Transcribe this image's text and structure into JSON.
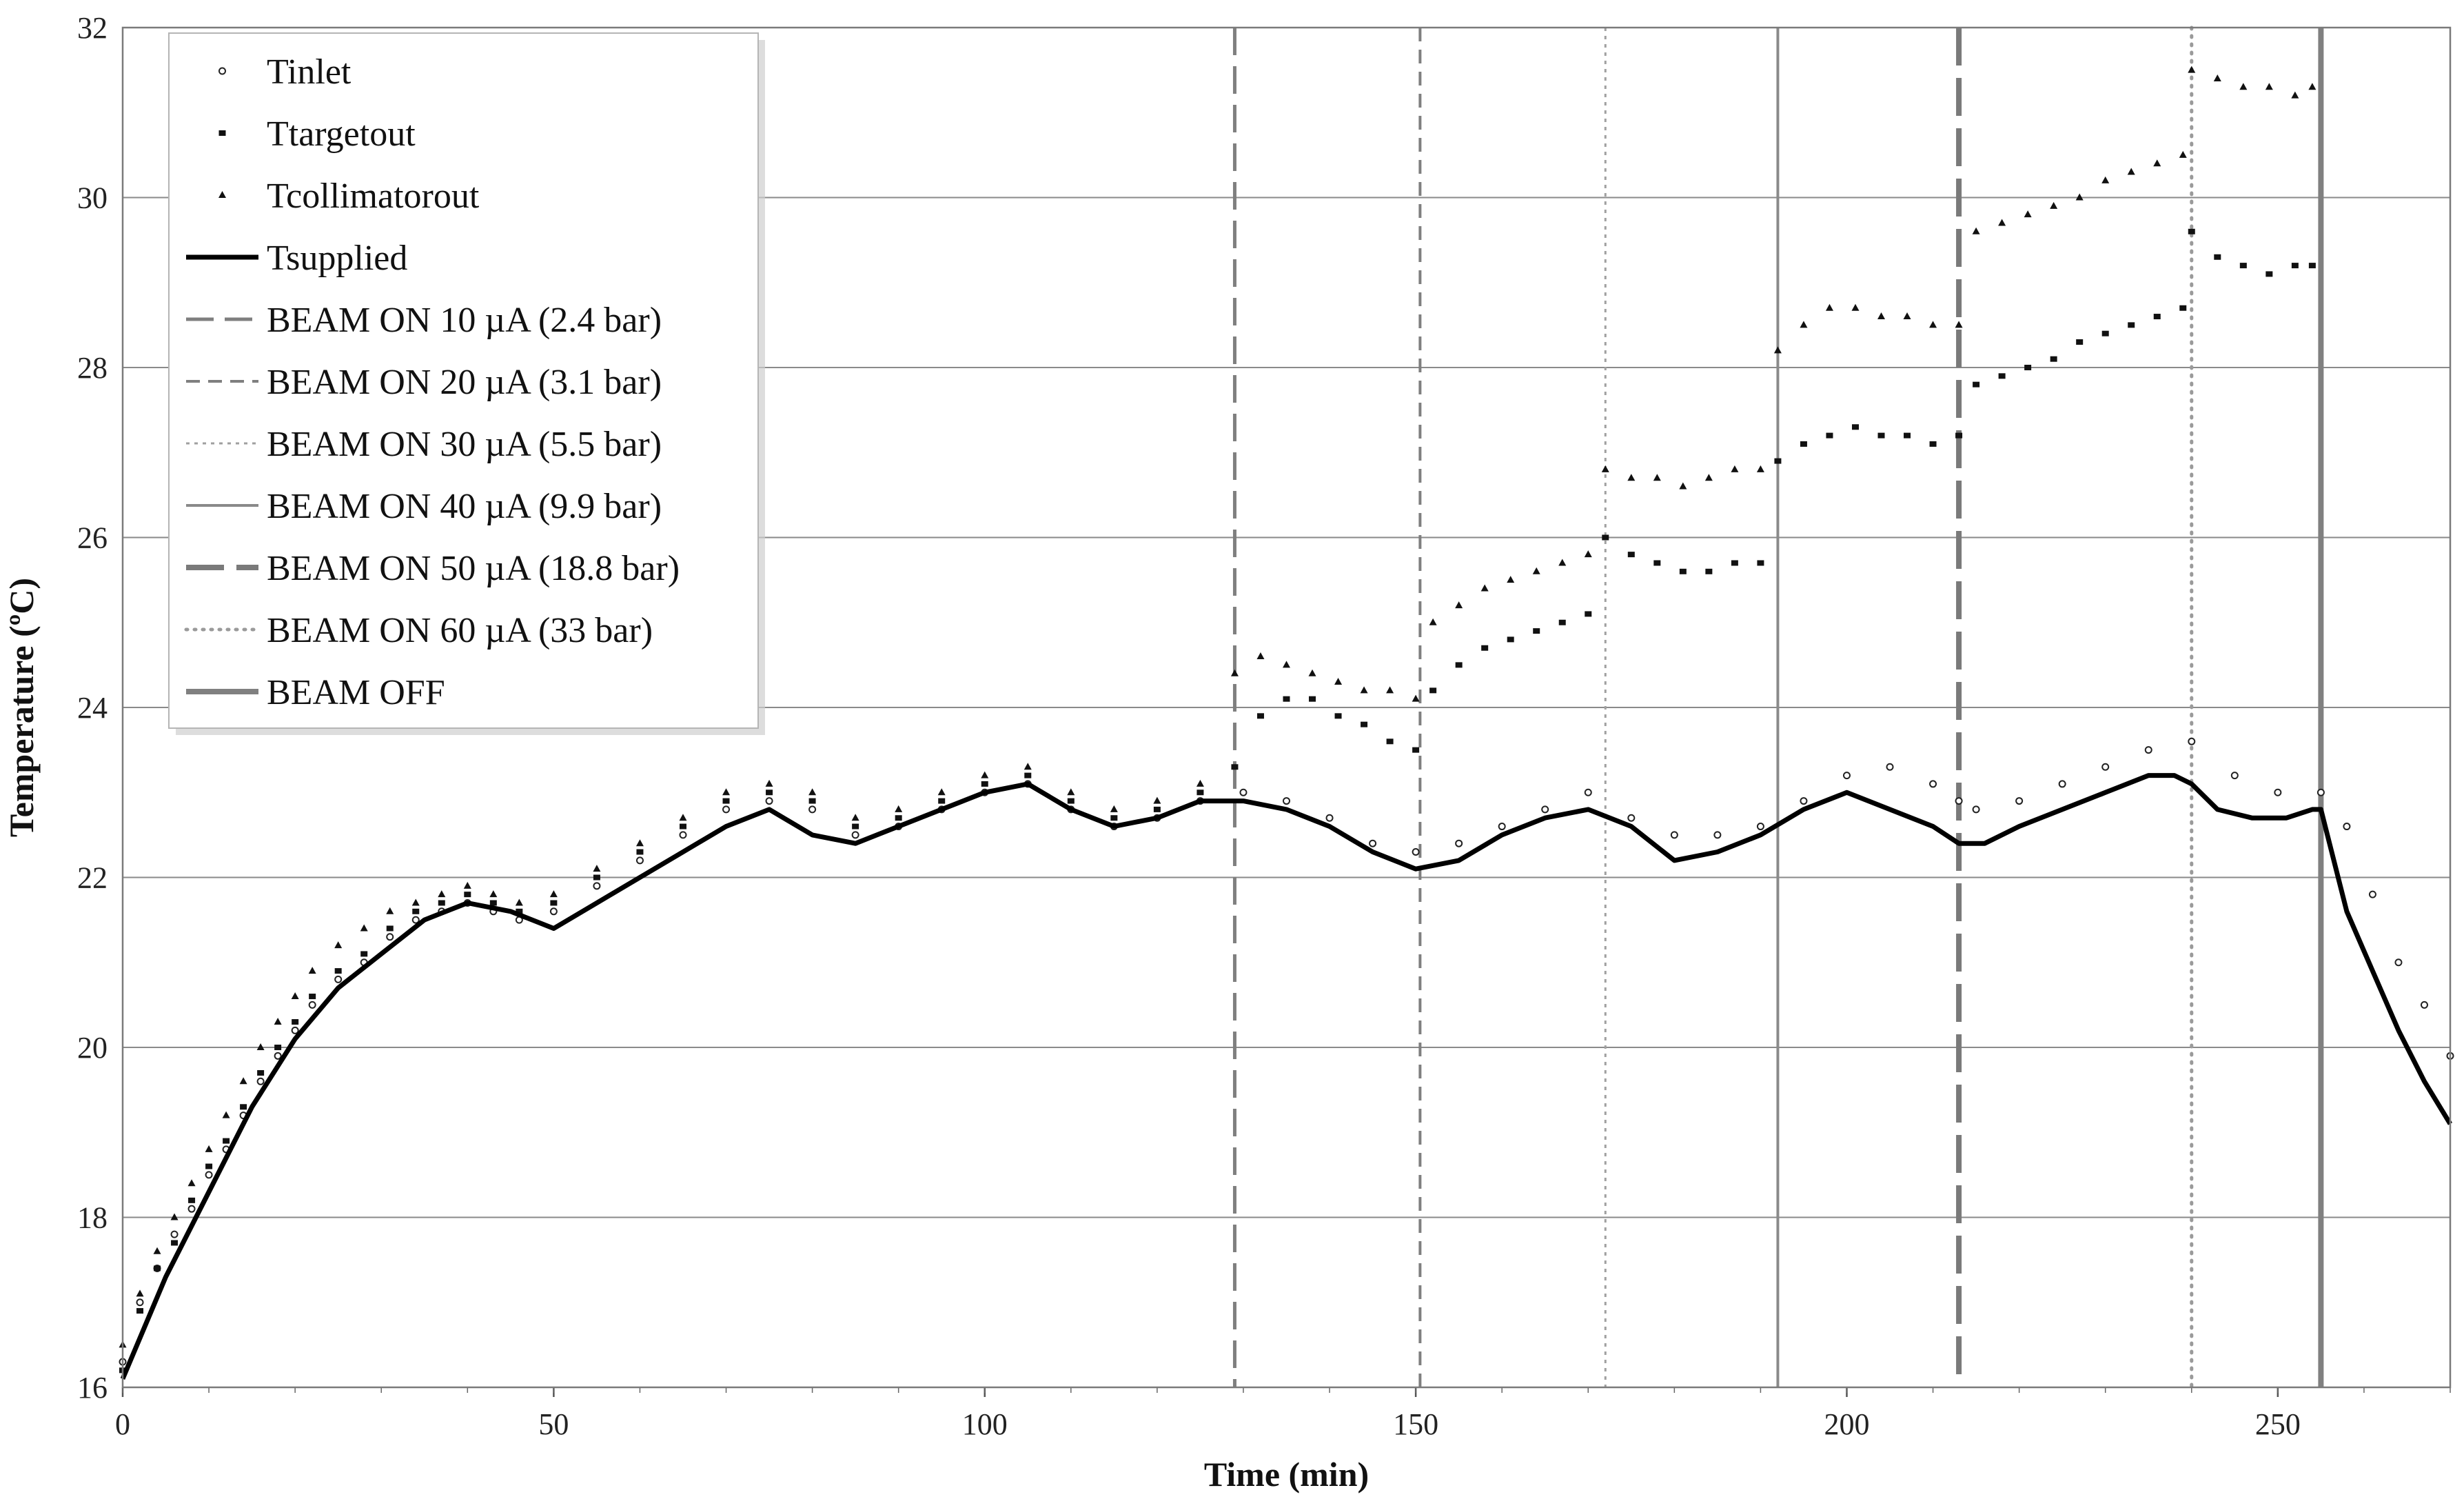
{
  "chart_data": {
    "type": "scatter",
    "title": "",
    "xlabel": "Time (min)",
    "ylabel": "Temperature (ºC)",
    "xlim": [
      0,
      270
    ],
    "ylim": [
      16,
      32
    ],
    "x_ticks": [
      "0",
      "50",
      "100",
      "150",
      "200",
      "250"
    ],
    "y_ticks": [
      "16",
      "18",
      "20",
      "22",
      "24",
      "26",
      "28",
      "30",
      "32"
    ],
    "grid": "horizontal",
    "legend_position": "top-left",
    "series": [
      {
        "name": "Tinlet",
        "marker": "open-circle",
        "x": [
          0,
          2,
          4,
          6,
          8,
          10,
          12,
          14,
          16,
          18,
          20,
          22,
          25,
          28,
          31,
          34,
          37,
          40,
          43,
          46,
          50,
          55,
          60,
          65,
          70,
          75,
          80,
          85,
          90,
          95,
          100,
          105,
          110,
          115,
          120,
          125,
          130,
          135,
          140,
          145,
          150,
          155,
          160,
          165,
          170,
          175,
          180,
          185,
          190,
          195,
          200,
          205,
          210,
          213,
          215,
          220,
          225,
          230,
          235,
          240,
          245,
          250,
          255,
          258,
          261,
          264,
          267,
          270
        ],
        "y": [
          16.3,
          17.0,
          17.4,
          17.8,
          18.1,
          18.5,
          18.8,
          19.2,
          19.6,
          19.9,
          20.2,
          20.5,
          20.8,
          21.0,
          21.3,
          21.5,
          21.6,
          21.7,
          21.6,
          21.5,
          21.6,
          21.9,
          22.2,
          22.5,
          22.8,
          22.9,
          22.8,
          22.5,
          22.6,
          22.8,
          23.0,
          23.1,
          22.8,
          22.6,
          22.7,
          22.9,
          23.0,
          22.9,
          22.7,
          22.4,
          22.3,
          22.4,
          22.6,
          22.8,
          23.0,
          22.7,
          22.5,
          22.5,
          22.6,
          22.9,
          23.2,
          23.3,
          23.1,
          22.9,
          22.8,
          22.9,
          23.1,
          23.3,
          23.5,
          23.6,
          23.2,
          23.0,
          23.0,
          22.6,
          21.8,
          21.0,
          20.5,
          19.9
        ]
      },
      {
        "name": "Ttargetout",
        "marker": "filled-square",
        "x": [
          0,
          2,
          4,
          6,
          8,
          10,
          12,
          14,
          16,
          18,
          20,
          22,
          25,
          28,
          31,
          34,
          37,
          40,
          43,
          46,
          50,
          55,
          60,
          65,
          70,
          75,
          80,
          85,
          90,
          95,
          100,
          105,
          110,
          115,
          120,
          125,
          129,
          132,
          135,
          138,
          141,
          144,
          147,
          150,
          152,
          155,
          158,
          161,
          164,
          167,
          170,
          172,
          175,
          178,
          181,
          184,
          187,
          190,
          192,
          195,
          198,
          201,
          204,
          207,
          210,
          213,
          215,
          218,
          221,
          224,
          227,
          230,
          233,
          236,
          239,
          240,
          243,
          246,
          249,
          252,
          254
        ],
        "y": [
          16.2,
          16.9,
          17.4,
          17.7,
          18.2,
          18.6,
          18.9,
          19.3,
          19.7,
          20.0,
          20.3,
          20.6,
          20.9,
          21.1,
          21.4,
          21.6,
          21.7,
          21.8,
          21.7,
          21.6,
          21.7,
          22.0,
          22.3,
          22.6,
          22.9,
          23.0,
          22.9,
          22.6,
          22.7,
          22.9,
          23.1,
          23.2,
          22.9,
          22.7,
          22.8,
          23.0,
          23.3,
          23.9,
          24.1,
          24.1,
          23.9,
          23.8,
          23.6,
          23.5,
          24.2,
          24.5,
          24.7,
          24.8,
          24.9,
          25.0,
          25.1,
          26.0,
          25.8,
          25.7,
          25.6,
          25.6,
          25.7,
          25.7,
          26.9,
          27.1,
          27.2,
          27.3,
          27.2,
          27.2,
          27.1,
          27.2,
          27.8,
          27.9,
          28.0,
          28.1,
          28.3,
          28.4,
          28.5,
          28.6,
          28.7,
          29.6,
          29.3,
          29.2,
          29.1,
          29.2,
          29.2
        ]
      },
      {
        "name": "Tcollimatorout",
        "marker": "filled-triangle",
        "x": [
          0,
          2,
          4,
          6,
          8,
          10,
          12,
          14,
          16,
          18,
          20,
          22,
          25,
          28,
          31,
          34,
          37,
          40,
          43,
          46,
          50,
          55,
          60,
          65,
          70,
          75,
          80,
          85,
          90,
          95,
          100,
          105,
          110,
          115,
          120,
          125,
          129,
          132,
          135,
          138,
          141,
          144,
          147,
          150,
          152,
          155,
          158,
          161,
          164,
          167,
          170,
          172,
          175,
          178,
          181,
          184,
          187,
          190,
          192,
          195,
          198,
          201,
          204,
          207,
          210,
          213,
          215,
          218,
          221,
          224,
          227,
          230,
          233,
          236,
          239,
          240,
          243,
          246,
          249,
          252,
          254
        ],
        "y": [
          16.5,
          17.1,
          17.6,
          18.0,
          18.4,
          18.8,
          19.2,
          19.6,
          20.0,
          20.3,
          20.6,
          20.9,
          21.2,
          21.4,
          21.6,
          21.7,
          21.8,
          21.9,
          21.8,
          21.7,
          21.8,
          22.1,
          22.4,
          22.7,
          23.0,
          23.1,
          23.0,
          22.7,
          22.8,
          23.0,
          23.2,
          23.3,
          23.0,
          22.8,
          22.9,
          23.1,
          24.4,
          24.6,
          24.5,
          24.4,
          24.3,
          24.2,
          24.2,
          24.1,
          25.0,
          25.2,
          25.4,
          25.5,
          25.6,
          25.7,
          25.8,
          26.8,
          26.7,
          26.7,
          26.6,
          26.7,
          26.8,
          26.8,
          28.2,
          28.5,
          28.7,
          28.7,
          28.6,
          28.6,
          28.5,
          28.5,
          29.6,
          29.7,
          29.8,
          29.9,
          30.0,
          30.2,
          30.3,
          30.4,
          30.5,
          31.5,
          31.4,
          31.3,
          31.3,
          31.2,
          31.3
        ]
      },
      {
        "name": "Tsupplied",
        "marker": "solid-line",
        "x": [
          0,
          5,
          10,
          15,
          20,
          25,
          30,
          35,
          40,
          45,
          50,
          55,
          60,
          65,
          70,
          75,
          80,
          85,
          90,
          95,
          100,
          105,
          110,
          115,
          120,
          125,
          130,
          135,
          140,
          145,
          150,
          155,
          160,
          165,
          170,
          175,
          180,
          185,
          190,
          195,
          200,
          205,
          210,
          213,
          216,
          220,
          225,
          230,
          235,
          238,
          240,
          243,
          247,
          251,
          254,
          255,
          256,
          258,
          261,
          264,
          267,
          270
        ],
        "y": [
          16.1,
          17.3,
          18.3,
          19.3,
          20.1,
          20.7,
          21.1,
          21.5,
          21.7,
          21.6,
          21.4,
          21.7,
          22.0,
          22.3,
          22.6,
          22.8,
          22.5,
          22.4,
          22.6,
          22.8,
          23.0,
          23.1,
          22.8,
          22.6,
          22.7,
          22.9,
          22.9,
          22.8,
          22.6,
          22.3,
          22.1,
          22.2,
          22.5,
          22.7,
          22.8,
          22.6,
          22.2,
          22.3,
          22.5,
          22.8,
          23.0,
          22.8,
          22.6,
          22.4,
          22.4,
          22.6,
          22.8,
          23.0,
          23.2,
          23.2,
          23.1,
          22.8,
          22.7,
          22.7,
          22.8,
          22.8,
          22.4,
          21.6,
          20.9,
          20.2,
          19.6,
          19.1
        ]
      }
    ],
    "vertical_markers": [
      {
        "name": "BEAM ON  10 µA (2.4 bar)",
        "x": 129,
        "style": "long-dash"
      },
      {
        "name": "BEAM ON  20 µA (3.1 bar)",
        "x": 150.5,
        "style": "dash"
      },
      {
        "name": "BEAM ON  30 µA (5.5 bar)",
        "x": 172,
        "style": "dot"
      },
      {
        "name": "BEAM ON  40 µA (9.9 bar)",
        "x": 192,
        "style": "solid"
      },
      {
        "name": "BEAM ON  50 µA (18.8 bar)",
        "x": 213,
        "style": "heavy-long-dash"
      },
      {
        "name": "BEAM ON  60 µA (33 bar)",
        "x": 240,
        "style": "round-dot"
      },
      {
        "name": "BEAM OFF",
        "x": 255,
        "style": "heavy-solid"
      }
    ]
  }
}
